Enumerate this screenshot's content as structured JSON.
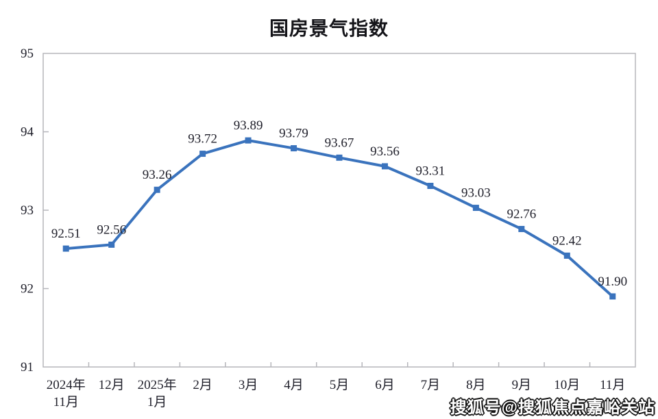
{
  "page": {
    "background": "#ffffff"
  },
  "chart_data": {
    "type": "line",
    "title": "国房景气指数",
    "categories": [
      "2024年\n11月",
      "12月",
      "2025年\n1月",
      "2月",
      "3月",
      "4月",
      "5月",
      "6月",
      "7月",
      "8月",
      "9月",
      "10月",
      "11月"
    ],
    "values": [
      92.51,
      92.56,
      93.26,
      93.72,
      93.89,
      93.79,
      93.67,
      93.56,
      93.31,
      93.03,
      92.76,
      92.42,
      91.9
    ],
    "data_labels": [
      "92.51",
      "92.56",
      "93.26",
      "93.72",
      "93.89",
      "93.79",
      "93.67",
      "93.56",
      "93.31",
      "93.03",
      "92.76",
      "92.42",
      "91.90"
    ],
    "xlabel": "",
    "ylabel": "",
    "ylim": [
      91,
      95
    ],
    "yticks": [
      91,
      92,
      93,
      94,
      95
    ],
    "grid": false,
    "legend_position": "none",
    "line_color": "#3a73bd",
    "marker": "square",
    "axis_color": "#b5b5ba",
    "text_color": "#20202b"
  },
  "watermark": {
    "text": "搜狐号@搜狐焦点嘉峪关站"
  }
}
